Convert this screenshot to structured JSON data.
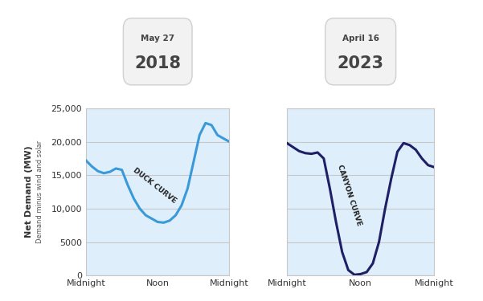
{
  "chart_data": [
    {
      "type": "line",
      "title": "May 27",
      "subtitle": "2018",
      "ylabel": "Net Demand (MW)",
      "ylabel_subtitle": "Demand minus wind and solar",
      "annotations": [
        "DUCK CURVE"
      ],
      "x": [
        0,
        1,
        2,
        3,
        4,
        5,
        6,
        7,
        8,
        9,
        10,
        11,
        12,
        13,
        14,
        15,
        16,
        17,
        18,
        19,
        20,
        21,
        22,
        23,
        24
      ],
      "values": [
        17200,
        16300,
        15600,
        15300,
        15500,
        16000,
        15800,
        13500,
        11500,
        10000,
        9000,
        8500,
        8000,
        7900,
        8200,
        9000,
        10500,
        13000,
        17000,
        21000,
        22800,
        22500,
        21000,
        20500,
        20000
      ],
      "color": "#3a9ad9",
      "xlim": [
        0,
        24
      ],
      "xticks": [
        {
          "value": 0,
          "label": "Midnight"
        },
        {
          "value": 12,
          "label": "Noon"
        },
        {
          "value": 24,
          "label": "Midnight"
        }
      ],
      "ylim": [
        0,
        25000
      ],
      "yticks": [
        0,
        5000,
        {
          "value": 10000,
          "label": "10,000"
        },
        {
          "value": 15000,
          "label": "15,000"
        },
        {
          "value": 20000,
          "label": "20,000"
        },
        {
          "value": 25000,
          "label": "25,000"
        }
      ],
      "grid": true
    },
    {
      "type": "line",
      "title": "April 16",
      "subtitle": "2023",
      "annotations": [
        "CANYON CURVE"
      ],
      "x": [
        0,
        1,
        2,
        3,
        4,
        5,
        6,
        7,
        8,
        9,
        10,
        11,
        12,
        13,
        14,
        15,
        16,
        17,
        18,
        19,
        20,
        21,
        22,
        23,
        24
      ],
      "values": [
        19800,
        19200,
        18600,
        18300,
        18200,
        18400,
        17500,
        13000,
        8000,
        3500,
        800,
        100,
        200,
        500,
        1800,
        5000,
        10000,
        14500,
        18500,
        19800,
        19500,
        18800,
        17500,
        16500,
        16200
      ],
      "color": "#1f1f66",
      "xlim": [
        0,
        24
      ],
      "xticks": [
        {
          "value": 0,
          "label": "Midnight"
        },
        {
          "value": 12,
          "label": "Noon"
        },
        {
          "value": 24,
          "label": "Midnight"
        }
      ],
      "ylim": [
        0,
        25000
      ],
      "yticks": [
        0,
        5000,
        {
          "value": 10000,
          "label": "10,000"
        },
        {
          "value": 15000,
          "label": "15,000"
        },
        {
          "value": 20000,
          "label": "20,000"
        },
        {
          "value": 25000,
          "label": "25,000"
        }
      ],
      "grid": true,
      "tick_labels": "x"
    }
  ]
}
